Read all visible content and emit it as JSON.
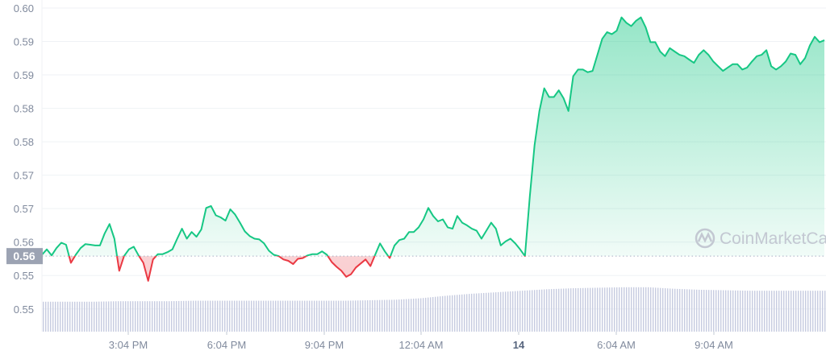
{
  "chart_data": {
    "type": "area",
    "title": "",
    "xlabel": "",
    "ylabel": "",
    "x_range": [
      "13 12:24 PM",
      "14 12:30 PM"
    ],
    "ylim": [
      0.5516,
      0.6
    ],
    "grid": true,
    "y_ticks": [
      {
        "value": 0.6,
        "label": "0.60"
      },
      {
        "value": 0.595,
        "label": "0.59"
      },
      {
        "value": 0.59,
        "label": "0.59"
      },
      {
        "value": 0.585,
        "label": "0.58"
      },
      {
        "value": 0.58,
        "label": "0.58"
      },
      {
        "value": 0.575,
        "label": "0.57"
      },
      {
        "value": 0.57,
        "label": "0.57"
      },
      {
        "value": 0.565,
        "label": "0.56"
      },
      {
        "value": 0.56,
        "label": "0.55"
      },
      {
        "value": 0.555,
        "label": "0.55"
      }
    ],
    "x_ticks": [
      {
        "label": "3:04 PM",
        "bold": false
      },
      {
        "label": "6:04 PM",
        "bold": false
      },
      {
        "label": "9:04 PM",
        "bold": false
      },
      {
        "label": "12:04 AM",
        "bold": false
      },
      {
        "label": "14",
        "bold": true
      },
      {
        "label": "6:04 AM",
        "bold": false
      },
      {
        "label": "9:04 AM",
        "bold": false
      }
    ],
    "reference_price": 0.5629,
    "reference_label": "0.56",
    "prices": [
      0.5631,
      0.5639,
      0.563,
      0.5641,
      0.5649,
      0.5646,
      0.5619,
      0.5631,
      0.5641,
      0.5647,
      0.5646,
      0.5645,
      0.5645,
      0.5663,
      0.5677,
      0.5655,
      0.5607,
      0.5629,
      0.5639,
      0.5643,
      0.563,
      0.5619,
      0.5592,
      0.5624,
      0.5632,
      0.5632,
      0.5635,
      0.5639,
      0.5655,
      0.567,
      0.5655,
      0.5665,
      0.5658,
      0.5669,
      0.5701,
      0.5704,
      0.569,
      0.5687,
      0.5682,
      0.5699,
      0.5691,
      0.5679,
      0.5666,
      0.5659,
      0.5655,
      0.5654,
      0.5648,
      0.5637,
      0.5631,
      0.5629,
      0.5624,
      0.5622,
      0.5617,
      0.5625,
      0.5626,
      0.563,
      0.5632,
      0.5632,
      0.5636,
      0.5631,
      0.562,
      0.5613,
      0.5607,
      0.5598,
      0.5602,
      0.5612,
      0.5618,
      0.5624,
      0.5614,
      0.5631,
      0.5648,
      0.5636,
      0.5626,
      0.5645,
      0.5653,
      0.5655,
      0.5665,
      0.5665,
      0.5672,
      0.5684,
      0.5701,
      0.5689,
      0.5681,
      0.5684,
      0.5672,
      0.567,
      0.5689,
      0.5679,
      0.5675,
      0.567,
      0.5667,
      0.5655,
      0.5667,
      0.5679,
      0.567,
      0.5645,
      0.5651,
      0.5655,
      0.5648,
      0.5639,
      0.5629,
      0.5718,
      0.5795,
      0.5846,
      0.588,
      0.5867,
      0.5867,
      0.5877,
      0.5865,
      0.5846,
      0.5898,
      0.5908,
      0.5908,
      0.5904,
      0.5906,
      0.593,
      0.5954,
      0.5964,
      0.5961,
      0.5966,
      0.5986,
      0.5978,
      0.5973,
      0.5981,
      0.5986,
      0.5971,
      0.5949,
      0.5949,
      0.5935,
      0.5928,
      0.594,
      0.5935,
      0.593,
      0.5928,
      0.5923,
      0.5918,
      0.593,
      0.5937,
      0.593,
      0.592,
      0.5913,
      0.5906,
      0.5911,
      0.5916,
      0.5916,
      0.5908,
      0.5911,
      0.592,
      0.5928,
      0.593,
      0.5937,
      0.5913,
      0.5908,
      0.5913,
      0.592,
      0.5932,
      0.593,
      0.5916,
      0.5925,
      0.5944,
      0.5957,
      0.5949,
      0.5952
    ],
    "volume_relative": [
      0.6,
      0.6,
      0.6,
      0.61,
      0.61,
      0.61,
      0.62,
      0.62,
      0.62,
      0.62,
      0.62,
      0.62,
      0.62,
      0.63,
      0.64,
      0.67,
      0.72,
      0.76,
      0.79,
      0.82,
      0.85,
      0.87,
      0.88,
      0.89,
      0.89,
      0.86,
      0.84,
      0.83,
      0.82,
      0.82,
      0.82,
      0.82
    ],
    "colors": {
      "up": "#16c784",
      "down": "#ea3943",
      "volume": "#c6cbe0",
      "grid": "#eff2f5",
      "label_bg": "#9ca3b3"
    }
  },
  "watermark": "CoinMarketCap"
}
